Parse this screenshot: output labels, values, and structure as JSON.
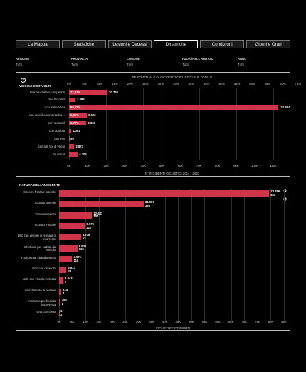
{
  "tabs": [
    "La Mappa",
    "Statistiche",
    "Lesioni e Decessi",
    "Dinamiche",
    "Condizioni",
    "Giorni e Orari"
  ],
  "active_tab": 3,
  "filters": [
    {
      "label": "REGIONE",
      "value": "Tutti"
    },
    {
      "label": "PROVINCIA",
      "value": "Tutti"
    },
    {
      "label": "COMUNE",
      "value": "Tutti"
    },
    {
      "label": "FUORI/NELL'ABITATO",
      "value": "Tutti"
    },
    {
      "label": "ANNO",
      "value": "Tutti"
    }
  ],
  "panel1": {
    "title": "VEICOLI COINVOLTI",
    "top_axis_title": "PERCENTUALE DI INCIDENTI CICLISTICI SUL TOTALE",
    "bottom_axis_title": "N° INCIDENTI CICLISTICI 2014 - 2023",
    "top_ticks": [
      "0%",
      "5%",
      "10%",
      "15%",
      "20%",
      "25%",
      "30%",
      "35%",
      "40%",
      "45%",
      "50%",
      "55%",
      "60%",
      "65%",
      "70%",
      "75%"
    ],
    "bottom_ticks": [
      "0K",
      "10K",
      "20K",
      "30K",
      "40K",
      "50K",
      "60K",
      "70K",
      "80K",
      "90K",
      "100K",
      "110K"
    ]
  },
  "panel2": {
    "title": "NATURA DELL'INCIDENTE",
    "bottom_axis_title": "CICLISTI FERITI/MORTI",
    "bottom_ticks": [
      "0K",
      "5K",
      "10K",
      "15K",
      "20K",
      "25K",
      "30K",
      "35K",
      "40K",
      "45K",
      "50K",
      "55K",
      "60K",
      "65K",
      "70K",
      "75K",
      "80K",
      "85K"
    ]
  },
  "chart_data": [
    {
      "type": "bar",
      "orientation": "horizontal",
      "title": "VEICOLI COINVOLTI",
      "xlabel": "N° INCIDENTI CICLISTICI 2014 - 2023",
      "xlim": [
        0,
        115000
      ],
      "categories": [
        "sola bicicletta o con pedoni",
        "due biciclette",
        "con autovetture",
        "con veicoli commerciali o ...",
        "con motocicli",
        "con autobus",
        "con treni",
        "con altri tipi di veicoli",
        "tre veicoli"
      ],
      "values": [
        20736,
        3493,
        112544,
        9622,
        9368,
        1091,
        59,
        2873,
        4706
      ],
      "percent_labels": [
        "12,61%",
        "",
        "68,42%",
        "5,85%",
        "5,70%",
        "",
        "",
        "",
        ""
      ]
    },
    {
      "type": "bar",
      "orientation": "horizontal",
      "title": "NATURA DELL'INCIDENTE",
      "xlabel": "CICLISTI FERITI/MORTI",
      "xlim": [
        0,
        85000
      ],
      "categories": [
        "Scontro frontale-laterale",
        "Scontro laterale",
        "Tamponamento",
        "Scontro frontale",
        "Urto con veicolo in fermata o in arresto",
        "Infortunio per caduta da veicolo",
        "Fuoriuscita, sbandamento",
        "Urto con ostacolo",
        "Urto con veicolo in sosta",
        "Investimento di pedone",
        "Infortunio per frenata improvvisa",
        "Urto con treno"
      ],
      "series": [
        {
          "name": "feriti",
          "values": [
            79456,
            31987,
            12487,
            9778,
            8279,
            6936,
            4971,
            2814,
            1643,
            814,
            494,
            1
          ]
        },
        {
          "name": "morti",
          "values": [
            813,
            355,
            104,
            210,
            53,
            135,
            118,
            33,
            7,
            4,
            2,
            2
          ]
        }
      ]
    }
  ]
}
